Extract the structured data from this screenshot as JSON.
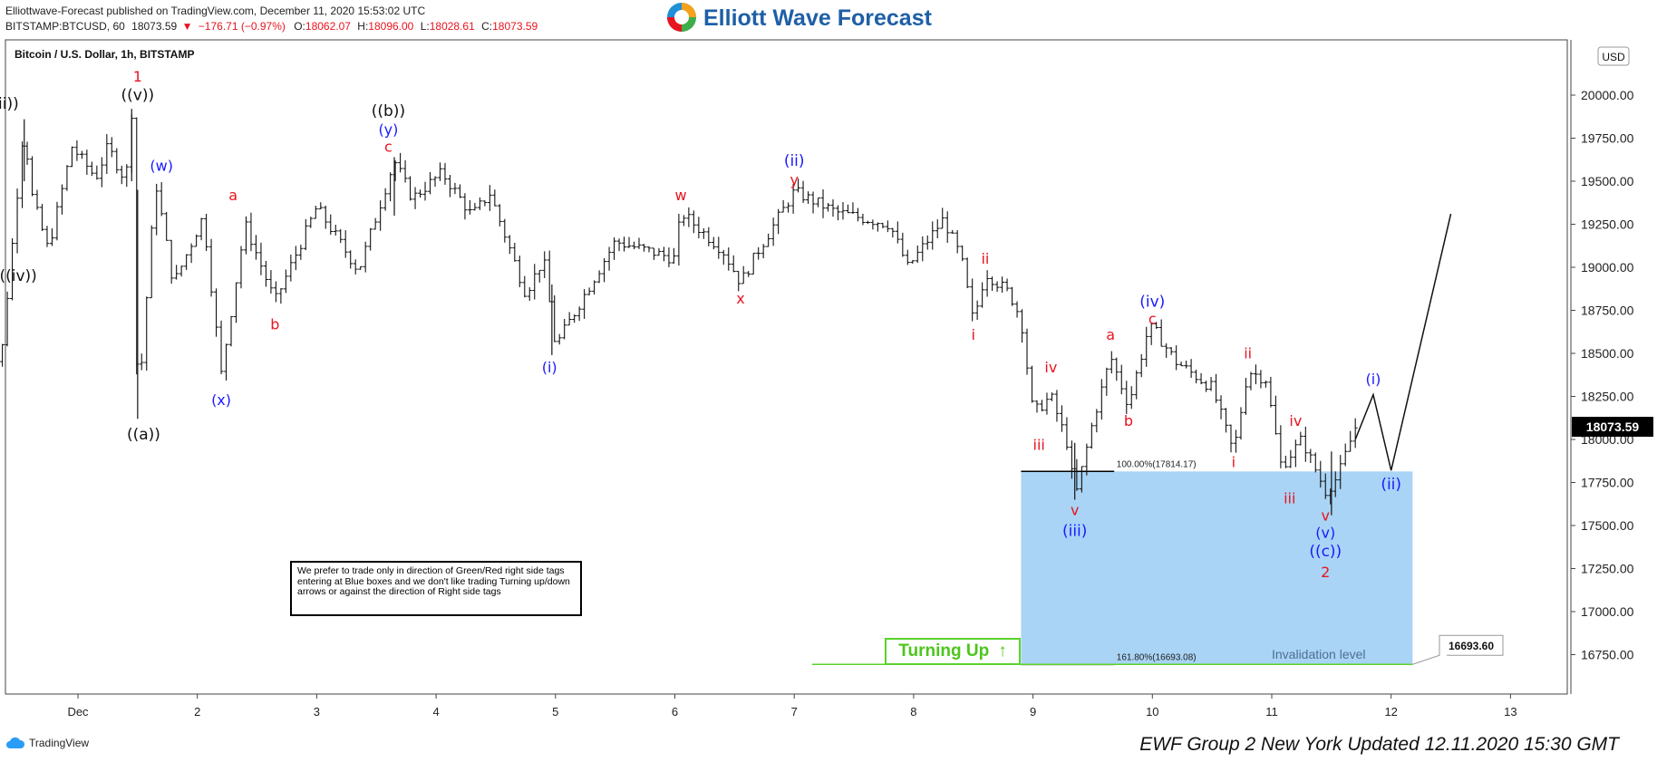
{
  "header": {
    "line1_prefix": "Elliottwave-Forecast",
    "line1_rest": " published on TradingView.com, December 11, 2020 15:53:02 UTC",
    "symbol": "BITSTAMP:BTCUSD, 60",
    "last": "18073.59",
    "down_arrow": "▼",
    "change": "−176.71 (−0.97%)",
    "o_label": "O:",
    "o_value": "18062.07",
    "h_label": "H:",
    "h_value": "18096.00",
    "l_label": "L:",
    "l_value": "18028.61",
    "c_label": "C:",
    "c_value": "18073.59"
  },
  "brand": {
    "name": "Elliott Wave Forecast"
  },
  "chart_title": "Bitcoin / U.S. Dollar, 1h, BITSTAMP",
  "currency_badge": "USD",
  "colors": {
    "bar": "#111111",
    "red": "#e8141e",
    "blue": "#1a1aff",
    "black": "#111111",
    "box": "#a9d4f5",
    "green": "#5ad22a",
    "price_tag_bg": "#000000"
  },
  "note": "We prefer to trade only in direction of Green/Red right side tags entering at Blue boxes and we don't like trading Turning up/down arrows or against the direction of Right side tags",
  "turning_up": {
    "label": "Turning Up",
    "arrow": "↑"
  },
  "footer": {
    "left": "TradingView",
    "right": "EWF Group 2 New York Updated 12.11.2020 15:30 GMT"
  },
  "chart_data": {
    "type": "ohlc",
    "title": "Bitcoin / U.S. Dollar, 1h, BITSTAMP",
    "x_ticks": [
      {
        "label": "Dec",
        "day": 1
      },
      {
        "label": "2",
        "day": 2
      },
      {
        "label": "3",
        "day": 3
      },
      {
        "label": "4",
        "day": 4
      },
      {
        "label": "5",
        "day": 5
      },
      {
        "label": "6",
        "day": 6
      },
      {
        "label": "7",
        "day": 7
      },
      {
        "label": "8",
        "day": 8
      },
      {
        "label": "9",
        "day": 9
      },
      {
        "label": "10",
        "day": 10
      },
      {
        "label": "11",
        "day": 11
      },
      {
        "label": "12",
        "day": 12
      },
      {
        "label": "13",
        "day": 13
      }
    ],
    "y_ticks": [
      "20000.00",
      "19750.00",
      "19500.00",
      "19250.00",
      "19000.00",
      "18750.00",
      "18500.00",
      "18250.00",
      "18000.00",
      "17750.00",
      "17500.00",
      "17250.00",
      "17000.00",
      "16750.00"
    ],
    "ylim": [
      16550,
      20300
    ],
    "last_price": "18073.59",
    "invalidation": "16693.60",
    "fib_levels": [
      {
        "label": "100.00%(17814.17)",
        "price": 17814.17
      },
      {
        "label": "161.80%(16693.08)",
        "price": 16693.08
      }
    ],
    "box_caption": "Invalidation level",
    "price_path": [
      [
        0.2,
        18650
      ],
      [
        0.35,
        18420
      ],
      [
        0.55,
        19850
      ],
      [
        0.6,
        19450
      ],
      [
        0.75,
        19100
      ],
      [
        0.95,
        19700
      ],
      [
        1.15,
        19520
      ],
      [
        1.25,
        19700
      ],
      [
        1.4,
        19500
      ],
      [
        1.45,
        19900
      ],
      [
        1.5,
        18150
      ],
      [
        1.65,
        19500
      ],
      [
        1.8,
        18900
      ],
      [
        2.05,
        19300
      ],
      [
        2.2,
        18380
      ],
      [
        2.4,
        19250
      ],
      [
        2.65,
        18800
      ],
      [
        3.0,
        19350
      ],
      [
        3.35,
        18980
      ],
      [
        3.65,
        19620
      ],
      [
        3.8,
        19400
      ],
      [
        4.05,
        19550
      ],
      [
        4.3,
        19300
      ],
      [
        4.45,
        19430
      ],
      [
        4.75,
        18850
      ],
      [
        4.9,
        19050
      ],
      [
        5.0,
        18540
      ],
      [
        5.25,
        18850
      ],
      [
        5.5,
        19150
      ],
      [
        6.0,
        19050
      ],
      [
        6.05,
        19320
      ],
      [
        6.4,
        19100
      ],
      [
        6.55,
        18910
      ],
      [
        6.7,
        19100
      ],
      [
        7.0,
        19440
      ],
      [
        7.35,
        19320
      ],
      [
        7.8,
        19250
      ],
      [
        7.95,
        19000
      ],
      [
        8.25,
        19280
      ],
      [
        8.4,
        19050
      ],
      [
        8.5,
        18680
      ],
      [
        8.6,
        18970
      ],
      [
        8.8,
        18850
      ],
      [
        8.9,
        18700
      ],
      [
        9.0,
        18150
      ],
      [
        9.15,
        18250
      ],
      [
        9.3,
        17950
      ],
      [
        9.35,
        17650
      ],
      [
        9.5,
        18100
      ],
      [
        9.65,
        18480
      ],
      [
        9.8,
        18200
      ],
      [
        9.95,
        18600
      ],
      [
        10.0,
        18650
      ],
      [
        10.2,
        18450
      ],
      [
        10.5,
        18300
      ],
      [
        10.68,
        17920
      ],
      [
        10.8,
        18400
      ],
      [
        10.95,
        18350
      ],
      [
        11.08,
        17840
      ],
      [
        11.25,
        18000
      ],
      [
        11.45,
        17700
      ],
      [
        11.55,
        17780
      ],
      [
        11.7,
        18070
      ]
    ],
    "projection": [
      [
        11.7,
        18000
      ],
      [
        11.85,
        18260
      ],
      [
        12.0,
        17820
      ],
      [
        12.5,
        19310
      ]
    ],
    "wave_labels": [
      {
        "text": "1",
        "color": "red",
        "day": 1.5,
        "price": 20080
      },
      {
        "text": "((v))",
        "color": "black",
        "day": 1.5,
        "price": 19970
      },
      {
        "text": "((iii))",
        "color": "black",
        "day": 0.35,
        "price": 19920
      },
      {
        "text": "((iv))",
        "color": "black",
        "day": 0.5,
        "price": 18920
      },
      {
        "text": "((a))",
        "color": "black",
        "day": 1.55,
        "price": 18000
      },
      {
        "text": "(w)",
        "color": "blue",
        "day": 1.7,
        "price": 19560
      },
      {
        "text": "(x)",
        "color": "blue",
        "day": 2.2,
        "price": 18200
      },
      {
        "text": "a",
        "color": "red",
        "day": 2.3,
        "price": 19390
      },
      {
        "text": "b",
        "color": "red",
        "day": 2.65,
        "price": 18640
      },
      {
        "text": "((b))",
        "color": "black",
        "day": 3.6,
        "price": 19880
      },
      {
        "text": "(y)",
        "color": "blue",
        "day": 3.6,
        "price": 19770
      },
      {
        "text": "c",
        "color": "red",
        "day": 3.6,
        "price": 19670
      },
      {
        "text": "(i)",
        "color": "blue",
        "day": 4.95,
        "price": 18390
      },
      {
        "text": "w",
        "color": "red",
        "day": 6.05,
        "price": 19390
      },
      {
        "text": "x",
        "color": "red",
        "day": 6.55,
        "price": 18790
      },
      {
        "text": "(ii)",
        "color": "blue",
        "day": 7.0,
        "price": 19590
      },
      {
        "text": "y",
        "color": "red",
        "day": 7.0,
        "price": 19480
      },
      {
        "text": "ii",
        "color": "red",
        "day": 8.6,
        "price": 19020
      },
      {
        "text": "i",
        "color": "red",
        "day": 8.5,
        "price": 18580
      },
      {
        "text": "iv",
        "color": "red",
        "day": 9.15,
        "price": 18390
      },
      {
        "text": "iii",
        "color": "red",
        "day": 9.05,
        "price": 17940
      },
      {
        "text": "v",
        "color": "red",
        "day": 9.35,
        "price": 17560
      },
      {
        "text": "(iii)",
        "color": "blue",
        "day": 9.35,
        "price": 17440
      },
      {
        "text": "(iv)",
        "color": "blue",
        "day": 10.0,
        "price": 18770
      },
      {
        "text": "c",
        "color": "red",
        "day": 10.0,
        "price": 18670
      },
      {
        "text": "a",
        "color": "red",
        "day": 9.65,
        "price": 18580
      },
      {
        "text": "b",
        "color": "red",
        "day": 9.8,
        "price": 18080
      },
      {
        "text": "i",
        "color": "red",
        "day": 10.68,
        "price": 17840
      },
      {
        "text": "ii",
        "color": "red",
        "day": 10.8,
        "price": 18470
      },
      {
        "text": "iv",
        "color": "red",
        "day": 11.2,
        "price": 18080
      },
      {
        "text": "iii",
        "color": "red",
        "day": 11.15,
        "price": 17630
      },
      {
        "text": "v",
        "color": "red",
        "day": 11.45,
        "price": 17530
      },
      {
        "text": "(v)",
        "color": "blue",
        "day": 11.45,
        "price": 17430
      },
      {
        "text": "((c))",
        "color": "blue",
        "day": 11.45,
        "price": 17320
      },
      {
        "text": "2",
        "color": "red",
        "day": 11.45,
        "price": 17200
      },
      {
        "text": "(i)",
        "color": "blue",
        "day": 11.85,
        "price": 18320
      },
      {
        "text": "(ii)",
        "color": "blue",
        "day": 12.0,
        "price": 17710
      }
    ]
  }
}
